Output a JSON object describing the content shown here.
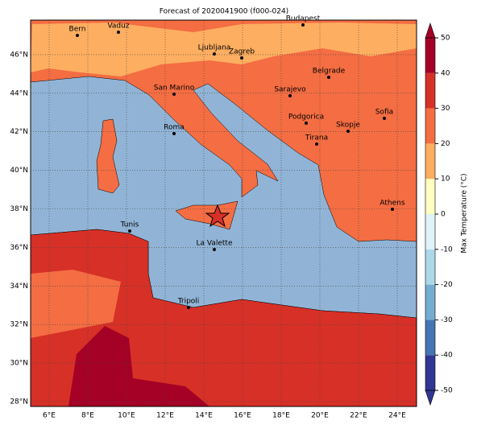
{
  "title": "Forecast of 2020041900 (f000-024)",
  "lon_labels": [
    "6°E",
    "8°E",
    "10°E",
    "12°E",
    "14°E",
    "16°E",
    "18°E",
    "20°E",
    "22°E",
    "24°E"
  ],
  "lat_labels": [
    "28°N",
    "30°N",
    "32°N",
    "34°N",
    "36°N",
    "38°N",
    "40°N",
    "42°N",
    "44°N",
    "46°N"
  ],
  "cities": [
    "Bern",
    "Vaduz",
    "Budapest",
    "Ljubljana",
    "Zagreb",
    "Belgrade",
    "San Marino",
    "Sarajevo",
    "Sofia",
    "Podgorica",
    "Skopje",
    "Roma",
    "Tirana",
    "Athens",
    "Tunis",
    "La Valette",
    "Tripoli"
  ],
  "colorbar": {
    "label": "Max Temperature (°C)",
    "ticks": [
      -50,
      -40,
      -30,
      -20,
      -10,
      0,
      10,
      20,
      30,
      40,
      50
    ],
    "colors": [
      "#313695",
      "#4575b4",
      "#74add1",
      "#abd9e9",
      "#e0f3f8",
      "#ffffbf",
      "#fdae61",
      "#f46d43",
      "#d73027",
      "#a50026"
    ]
  }
}
